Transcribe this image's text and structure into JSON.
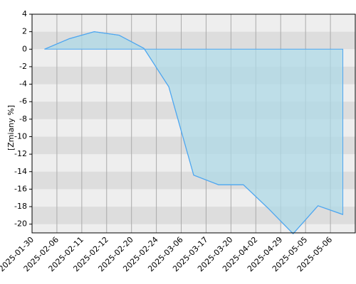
{
  "chart_data": {
    "type": "area",
    "y_label": "[Zmiany %]",
    "categories": [
      "2025-01-30",
      "2025-02-06",
      "2025-02-11",
      "2025-02-12",
      "2025-02-20",
      "2025-02-24",
      "2025-03-06",
      "2025-03-17",
      "2025-03-20",
      "2025-04-02",
      "2025-04-29",
      "2025-05-05",
      "2025-05-06"
    ],
    "values": [
      0,
      1.2,
      2.0,
      1.6,
      0.1,
      -4.3,
      -14.4,
      -15.5,
      -15.5,
      -18.2,
      -21.1,
      -17.9,
      -18.9
    ],
    "color": "#4da6f0",
    "fill": "#add8e6",
    "ylim": [
      -21,
      4
    ],
    "yticks": [
      4,
      2,
      0,
      -2,
      -4,
      -6,
      -8,
      -10,
      -12,
      -14,
      -16,
      -18,
      -20
    ],
    "grid": true
  }
}
